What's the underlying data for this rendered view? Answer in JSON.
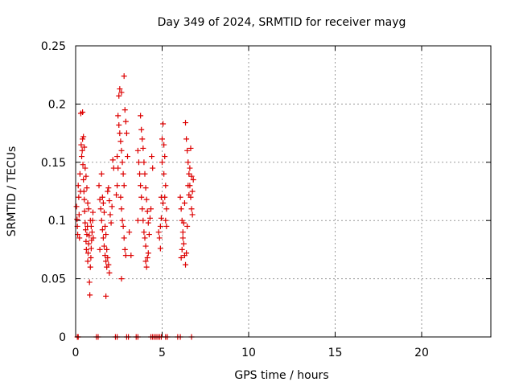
{
  "chart_data": {
    "type": "scatter",
    "title": "Day 349 of 2024, SRMTID for receiver mayg",
    "xlabel": "GPS time / hours",
    "ylabel": "SRMTID / TECUs",
    "xlim": [
      0,
      24
    ],
    "ylim": [
      0,
      0.25
    ],
    "xticks": [
      0,
      5,
      10,
      15,
      20
    ],
    "xtick_labels": [
      "0",
      "5",
      "10",
      "15",
      "20"
    ],
    "yticks": [
      0,
      0.05,
      0.1,
      0.15,
      0.2,
      0.25
    ],
    "ytick_labels": [
      "0",
      "0.05",
      "0.1",
      "0.15",
      "0.2",
      "0.25"
    ],
    "grid": true,
    "marker": "+",
    "color": "#dd0000",
    "series": [
      {
        "points": [
          [
            0.05,
            0.112
          ],
          [
            0.08,
            0.101
          ],
          [
            0.1,
            0.095
          ],
          [
            0.12,
            0.088
          ],
          [
            0.15,
            0.13
          ],
          [
            0.18,
            0.12
          ],
          [
            0.2,
            0.105
          ],
          [
            0.22,
            0.085
          ],
          [
            0.25,
            0.14
          ],
          [
            0.28,
            0.125
          ],
          [
            0.3,
            0.192
          ],
          [
            0.32,
            0.165
          ],
          [
            0.35,
            0.155
          ],
          [
            0.38,
            0.16
          ],
          [
            0.4,
            0.17
          ],
          [
            0.42,
            0.148
          ],
          [
            0.45,
            0.135
          ],
          [
            0.48,
            0.125
          ],
          [
            0.5,
            0.118
          ],
          [
            0.52,
            0.108
          ],
          [
            0.55,
            0.098
          ],
          [
            0.58,
            0.092
          ],
          [
            0.6,
            0.082
          ],
          [
            0.62,
            0.075
          ],
          [
            0.65,
            0.088
          ],
          [
            0.68,
            0.095
          ],
          [
            0.7,
            0.065
          ],
          [
            0.72,
            0.072
          ],
          [
            0.75,
            0.08
          ],
          [
            0.78,
            0.087
          ],
          [
            0.8,
            0.047
          ],
          [
            0.82,
            0.036
          ],
          [
            0.85,
            0.06
          ],
          [
            0.88,
            0.068
          ],
          [
            0.9,
            0.076
          ],
          [
            0.92,
            0.083
          ],
          [
            0.95,
            0.09
          ],
          [
            0.98,
            0.1
          ],
          [
            1.0,
            0.107
          ],
          [
            1.02,
            0.085
          ],
          [
            0.4,
            0.193
          ],
          [
            0.45,
            0.172
          ],
          [
            0.5,
            0.163
          ],
          [
            0.55,
            0.145
          ],
          [
            0.6,
            0.138
          ],
          [
            0.65,
            0.128
          ],
          [
            0.7,
            0.115
          ],
          [
            0.75,
            0.11
          ],
          [
            0.85,
            0.1
          ],
          [
            0.9,
            0.095
          ],
          [
            1.35,
            0.13
          ],
          [
            1.4,
            0.118
          ],
          [
            1.45,
            0.11
          ],
          [
            1.5,
            0.1
          ],
          [
            1.55,
            0.092
          ],
          [
            1.6,
            0.085
          ],
          [
            1.65,
            0.078
          ],
          [
            1.7,
            0.07
          ],
          [
            1.75,
            0.065
          ],
          [
            1.8,
            0.06
          ],
          [
            1.5,
            0.14
          ],
          [
            1.55,
            0.12
          ],
          [
            1.6,
            0.115
          ],
          [
            1.65,
            0.107
          ],
          [
            1.7,
            0.095
          ],
          [
            1.75,
            0.088
          ],
          [
            1.8,
            0.075
          ],
          [
            1.85,
            0.068
          ],
          [
            1.9,
            0.062
          ],
          [
            1.95,
            0.055
          ],
          [
            1.75,
            0.035
          ],
          [
            1.85,
            0.125
          ],
          [
            1.9,
            0.128
          ],
          [
            1.95,
            0.117
          ],
          [
            2.0,
            0.105
          ],
          [
            2.05,
            0.098
          ],
          [
            2.1,
            0.112
          ],
          [
            2.15,
            0.152
          ],
          [
            2.2,
            0.145
          ],
          [
            1.4,
            0.075
          ],
          [
            2.35,
            0.122
          ],
          [
            2.4,
            0.13
          ],
          [
            2.45,
            0.19
          ],
          [
            2.5,
            0.182
          ],
          [
            2.55,
            0.175
          ],
          [
            2.6,
            0.168
          ],
          [
            2.65,
            0.16
          ],
          [
            2.7,
            0.15
          ],
          [
            2.75,
            0.14
          ],
          [
            2.8,
            0.13
          ],
          [
            2.5,
            0.207
          ],
          [
            2.55,
            0.213
          ],
          [
            2.65,
            0.21
          ],
          [
            2.8,
            0.224
          ],
          [
            2.85,
            0.195
          ],
          [
            2.9,
            0.185
          ],
          [
            2.95,
            0.175
          ],
          [
            3.0,
            0.155
          ],
          [
            2.6,
            0.12
          ],
          [
            2.65,
            0.11
          ],
          [
            2.7,
            0.1
          ],
          [
            2.75,
            0.095
          ],
          [
            2.8,
            0.085
          ],
          [
            2.85,
            0.075
          ],
          [
            2.9,
            0.07
          ],
          [
            2.65,
            0.05
          ],
          [
            2.4,
            0.155
          ],
          [
            2.45,
            0.145
          ],
          [
            3.1,
            0.09
          ],
          [
            3.2,
            0.07
          ],
          [
            3.6,
            0.16
          ],
          [
            3.65,
            0.15
          ],
          [
            3.7,
            0.14
          ],
          [
            3.75,
            0.13
          ],
          [
            3.8,
            0.12
          ],
          [
            3.85,
            0.11
          ],
          [
            3.9,
            0.1
          ],
          [
            3.95,
            0.09
          ],
          [
            4.0,
            0.085
          ],
          [
            4.05,
            0.078
          ],
          [
            3.75,
            0.19
          ],
          [
            3.8,
            0.178
          ],
          [
            3.85,
            0.17
          ],
          [
            3.9,
            0.162
          ],
          [
            3.95,
            0.15
          ],
          [
            4.0,
            0.14
          ],
          [
            4.05,
            0.128
          ],
          [
            4.1,
            0.118
          ],
          [
            4.15,
            0.108
          ],
          [
            4.2,
            0.098
          ],
          [
            4.05,
            0.065
          ],
          [
            4.1,
            0.06
          ],
          [
            4.15,
            0.068
          ],
          [
            4.2,
            0.072
          ],
          [
            4.25,
            0.088
          ],
          [
            4.3,
            0.102
          ],
          [
            4.35,
            0.11
          ],
          [
            4.4,
            0.155
          ],
          [
            4.45,
            0.145
          ],
          [
            3.6,
            0.1
          ],
          [
            4.8,
            0.09
          ],
          [
            4.85,
            0.085
          ],
          [
            4.9,
            0.076
          ],
          [
            4.95,
            0.12
          ],
          [
            5.0,
            0.17
          ],
          [
            5.05,
            0.183
          ],
          [
            5.1,
            0.165
          ],
          [
            5.15,
            0.155
          ],
          [
            5.2,
            0.13
          ],
          [
            5.25,
            0.11
          ],
          [
            5.1,
            0.14
          ],
          [
            5.15,
            0.12
          ],
          [
            5.2,
            0.1
          ],
          [
            5.25,
            0.095
          ],
          [
            4.9,
            0.095
          ],
          [
            4.95,
            0.102
          ],
          [
            5.0,
            0.15
          ],
          [
            5.05,
            0.115
          ],
          [
            6.05,
            0.12
          ],
          [
            6.1,
            0.11
          ],
          [
            6.15,
            0.1
          ],
          [
            6.2,
            0.09
          ],
          [
            6.25,
            0.08
          ],
          [
            6.3,
            0.07
          ],
          [
            6.35,
            0.062
          ],
          [
            6.4,
            0.072
          ],
          [
            6.45,
            0.095
          ],
          [
            6.5,
            0.13
          ],
          [
            6.35,
            0.184
          ],
          [
            6.4,
            0.17
          ],
          [
            6.45,
            0.16
          ],
          [
            6.5,
            0.15
          ],
          [
            6.55,
            0.14
          ],
          [
            6.6,
            0.13
          ],
          [
            6.65,
            0.12
          ],
          [
            6.7,
            0.11
          ],
          [
            6.75,
            0.105
          ],
          [
            6.8,
            0.135
          ],
          [
            6.1,
            0.068
          ],
          [
            6.15,
            0.075
          ],
          [
            6.2,
            0.085
          ],
          [
            6.25,
            0.098
          ],
          [
            6.3,
            0.115
          ],
          [
            6.55,
            0.122
          ],
          [
            6.6,
            0.145
          ],
          [
            6.65,
            0.162
          ],
          [
            6.7,
            0.138
          ],
          [
            6.75,
            0.125
          ],
          [
            0.1,
            0
          ],
          [
            0.15,
            0
          ],
          [
            1.2,
            0
          ],
          [
            1.3,
            0
          ],
          [
            2.3,
            0
          ],
          [
            2.4,
            0
          ],
          [
            2.95,
            0
          ],
          [
            3.05,
            0
          ],
          [
            3.5,
            0
          ],
          [
            3.6,
            0
          ],
          [
            4.35,
            0
          ],
          [
            4.45,
            0
          ],
          [
            4.55,
            0
          ],
          [
            4.65,
            0
          ],
          [
            4.75,
            0
          ],
          [
            4.85,
            0
          ],
          [
            4.95,
            0
          ],
          [
            5.2,
            0
          ],
          [
            5.3,
            0
          ],
          [
            5.9,
            0
          ],
          [
            6.05,
            0
          ],
          [
            6.7,
            0
          ]
        ]
      }
    ]
  }
}
